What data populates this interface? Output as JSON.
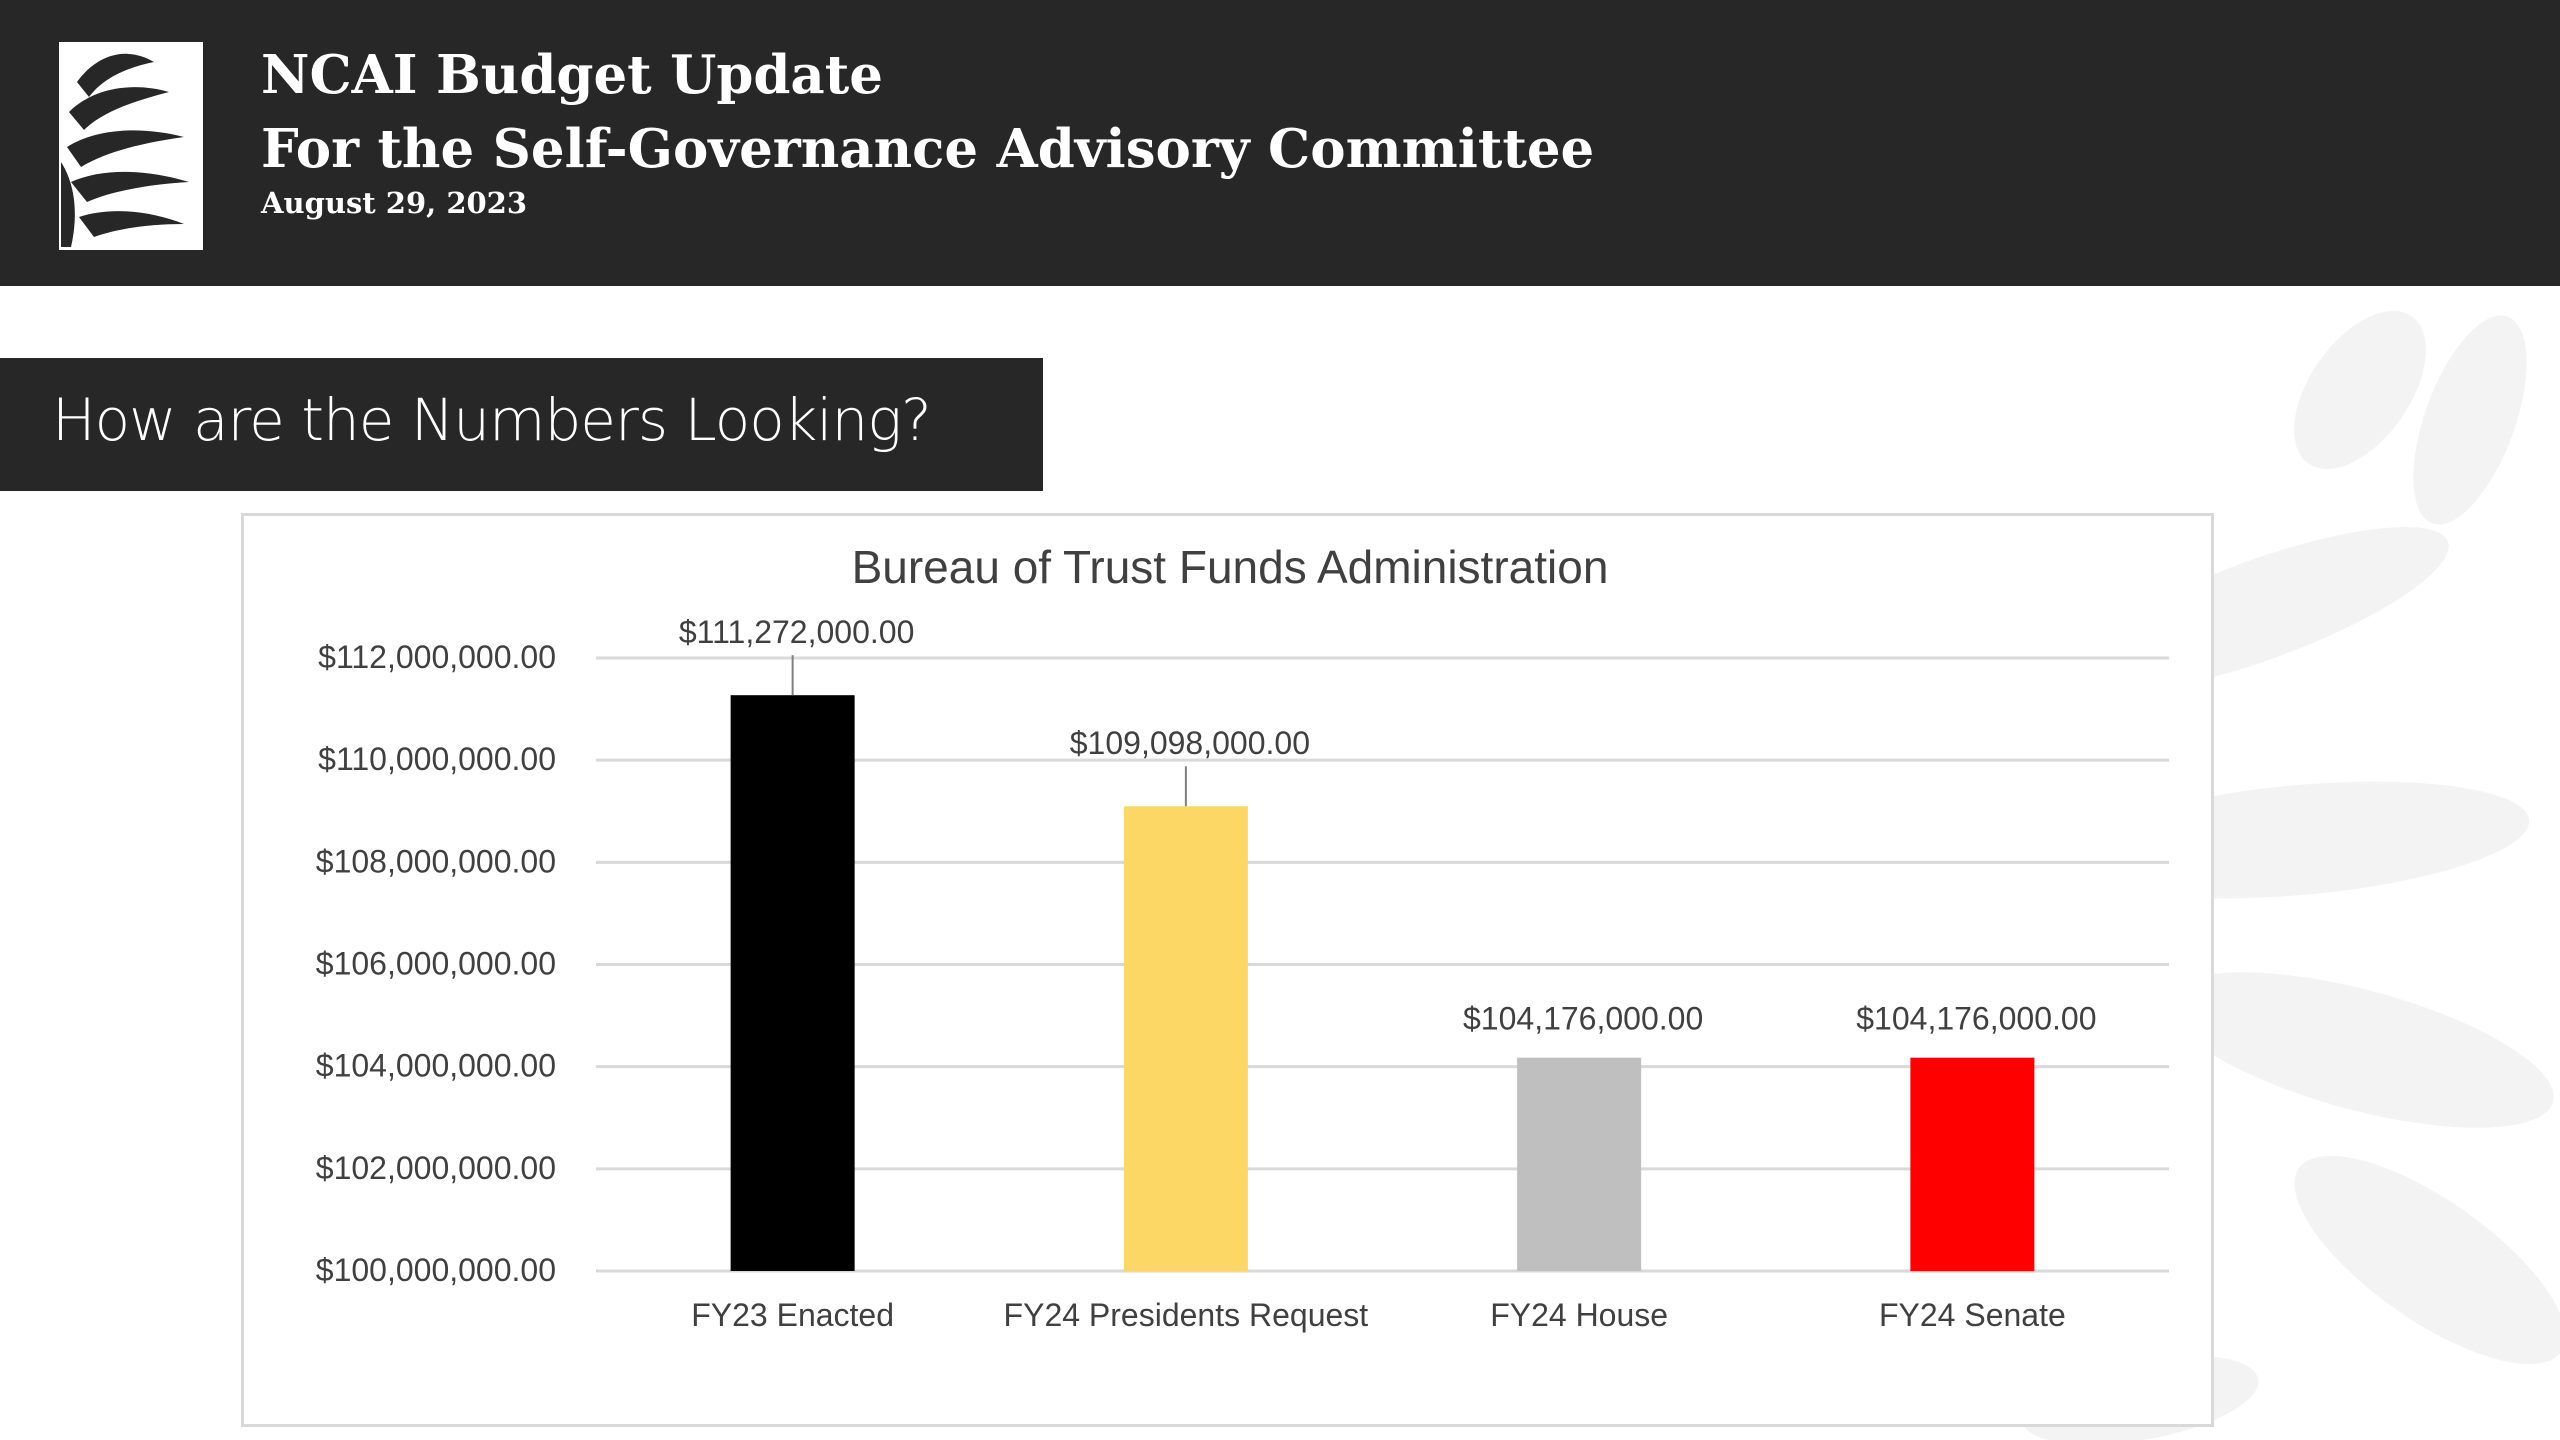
{
  "header": {
    "title_line1": "NCAI Budget Update",
    "title_line2": "For the Self-Governance Advisory Committee",
    "date": "August 29, 2023"
  },
  "section": {
    "title": "How are the Numbers Looking?"
  },
  "colors": {
    "header_bg": "#272727",
    "gridline": "#d9d9d9",
    "text": "#404040"
  },
  "chart_data": {
    "type": "bar",
    "title": "Bureau of Trust Funds Administration",
    "xlabel": "",
    "ylabel": "",
    "categories": [
      "FY23 Enacted",
      "FY24 Presidents Request",
      "FY24 House",
      "FY24 Senate"
    ],
    "values": [
      111272000,
      109098000,
      104176000,
      104176000
    ],
    "data_labels": [
      "$111,272,000.00",
      "$109,098,000.00",
      "$104,176,000.00",
      "$104,176,000.00"
    ],
    "bar_colors": [
      "#000000",
      "#fdd765",
      "#bfbfbf",
      "#ff0000"
    ],
    "ylim": [
      100000000,
      112000000
    ],
    "yticks": [
      100000000,
      102000000,
      104000000,
      106000000,
      108000000,
      110000000,
      112000000
    ],
    "ytick_labels": [
      "$100,000,000.00",
      "$102,000,000.00",
      "$104,000,000.00",
      "$106,000,000.00",
      "$108,000,000.00",
      "$110,000,000.00",
      "$112,000,000.00"
    ],
    "grid": true,
    "legend": "none"
  }
}
